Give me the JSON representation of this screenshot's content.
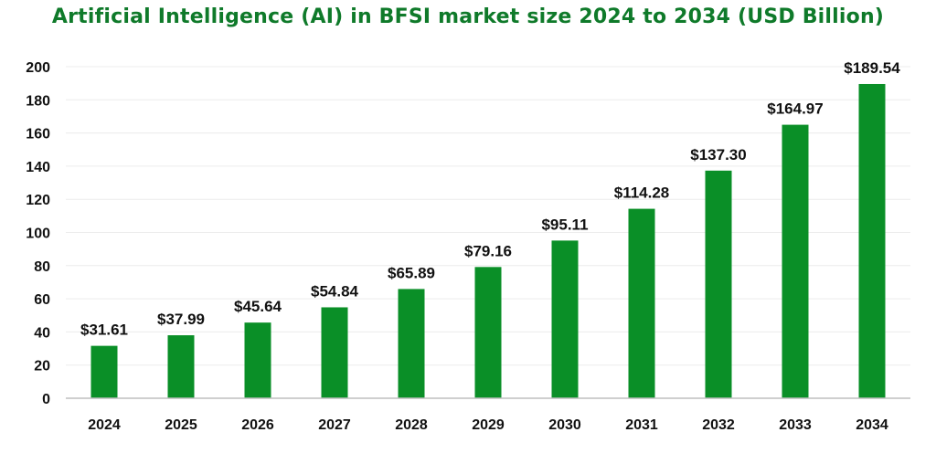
{
  "chart_data": {
    "type": "bar",
    "title": "Artificial Intelligence (AI) in BFSI market size 2024 to 2034 (USD Billion)",
    "categories": [
      "2024",
      "2025",
      "2026",
      "2027",
      "2028",
      "2029",
      "2030",
      "2031",
      "2032",
      "2033",
      "2034"
    ],
    "values": [
      31.61,
      37.99,
      45.64,
      54.84,
      65.89,
      79.16,
      95.11,
      114.28,
      137.3,
      164.97,
      189.54
    ],
    "data_labels": [
      "$31.61",
      "$37.99",
      "$45.64",
      "$54.84",
      "$65.89",
      "$79.16",
      "$95.11",
      "$114.28",
      "$137.30",
      "$164.97",
      "$189.54"
    ],
    "y_ticks": [
      0,
      20,
      40,
      60,
      80,
      100,
      120,
      140,
      160,
      180,
      200
    ],
    "ylim": [
      0,
      200
    ],
    "xlabel": "",
    "ylabel": "",
    "grid": true,
    "legend": "none",
    "colors": {
      "bar": "#0a8f27",
      "title": "#0f7a2a",
      "grid": "#ececec",
      "axis": "#bfbfbf"
    }
  }
}
